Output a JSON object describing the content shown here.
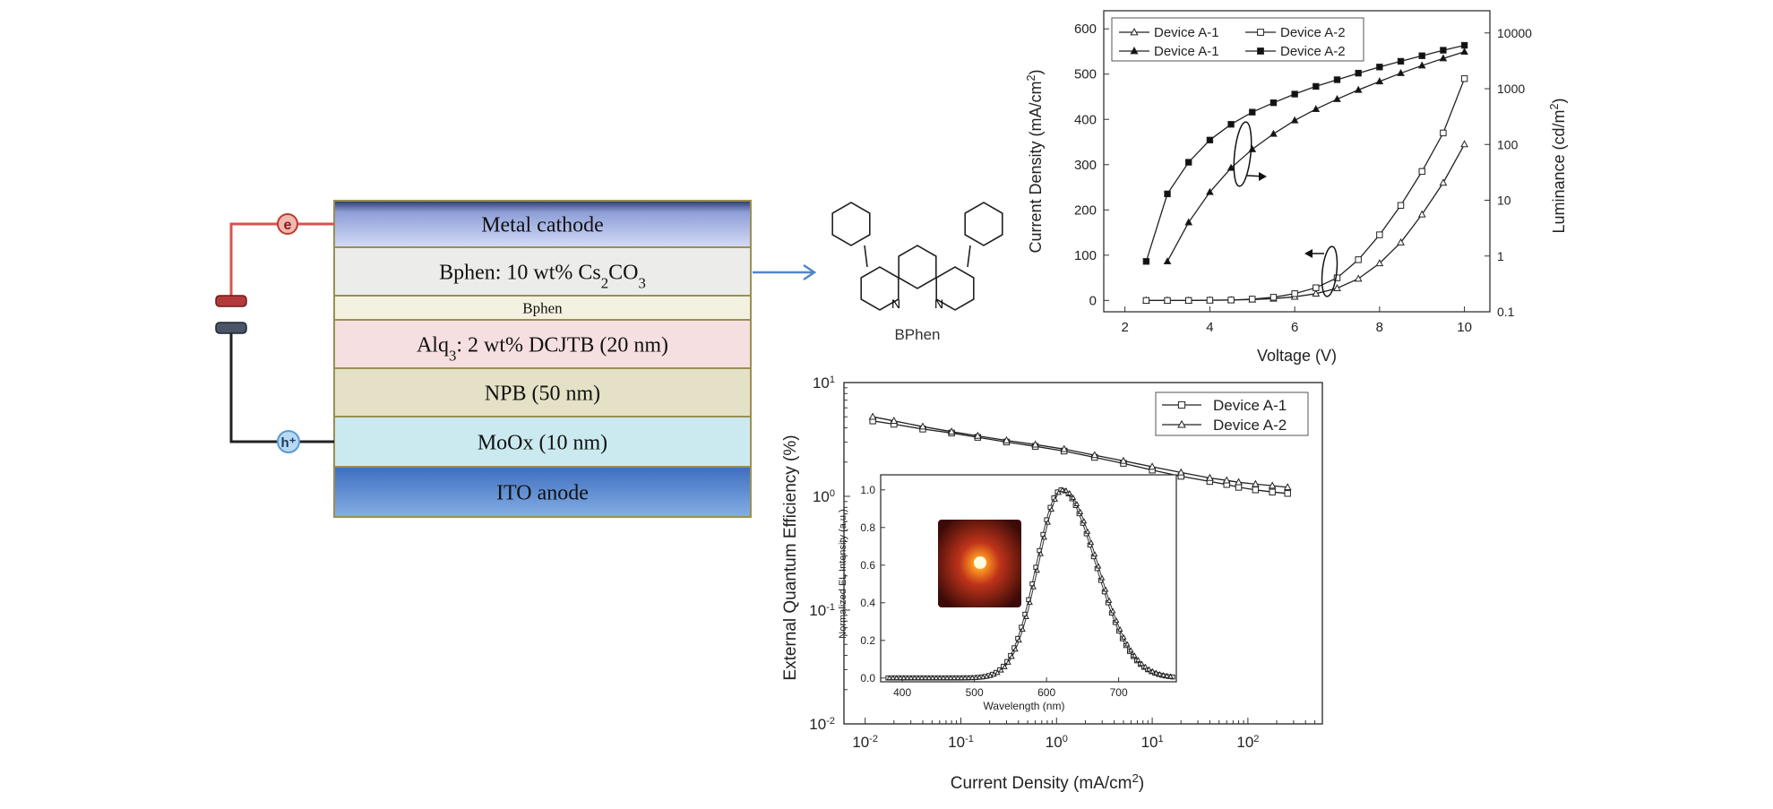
{
  "device_stack": {
    "layers": [
      {
        "label_parts": [
          {
            "t": "Metal cathode"
          }
        ],
        "color": "#b8c4ec"
      },
      {
        "label_parts": [
          {
            "t": "Bphen: 10 wt% Cs"
          },
          {
            "t": "2",
            "sub": true
          },
          {
            "t": "CO"
          },
          {
            "t": "3",
            "sub": true
          }
        ],
        "color": "#ececea"
      },
      {
        "label_parts": [
          {
            "t": "Bphen"
          }
        ],
        "color": "#f3f2e0"
      },
      {
        "label_parts": [
          {
            "t": "Alq"
          },
          {
            "t": "3",
            "sub": true
          },
          {
            "t": ": 2 wt% DCJTB (20 nm)"
          }
        ],
        "color": "#f6dfe0"
      },
      {
        "label_parts": [
          {
            "t": "NPB (50 nm)"
          }
        ],
        "color": "#e5e1c6"
      },
      {
        "label_parts": [
          {
            "t": "MoOx (10 nm)"
          }
        ],
        "color": "#cbeaf0"
      },
      {
        "label_parts": [
          {
            "t": "ITO anode"
          }
        ],
        "color": "#5f8fd2"
      }
    ],
    "electron_label": "e",
    "hole_label": "h⁺",
    "electron_wire_color": "#d9534f",
    "hole_wire_color": "#222222"
  },
  "molecule_label": "BPhen",
  "molecule_atom_label": "N",
  "chart_data": [
    {
      "type": "line",
      "id": "jvl",
      "xlabel": "Voltage (V)",
      "ylabel_parts": [
        {
          "t": "Current Density (mA/cm"
        },
        {
          "t": "2",
          "sup": true
        },
        {
          "t": ")"
        }
      ],
      "y2label_parts": [
        {
          "t": "Luminance (cd/m"
        },
        {
          "t": "2",
          "sup": true
        },
        {
          "t": ")"
        }
      ],
      "xlim": [
        1.5,
        10.6
      ],
      "ylim": [
        -25,
        640
      ],
      "y2lim": [
        0.1,
        25000
      ],
      "y2scale": "log",
      "xticks": [
        2,
        4,
        6,
        8,
        10
      ],
      "yticks": [
        0,
        100,
        200,
        300,
        400,
        500,
        600
      ],
      "y2ticks": [
        0.1,
        1,
        10,
        100,
        1000,
        10000
      ],
      "y2ticklabels": [
        "0.1",
        "1",
        "10",
        "100",
        "1000",
        "10000"
      ],
      "legend_position": "top-left",
      "legend": [
        {
          "name": "Device A-1",
          "marker": "triangle-open"
        },
        {
          "name": "Device A-2",
          "marker": "square-open"
        },
        {
          "name": "Device A-1",
          "marker": "triangle-filled"
        },
        {
          "name": "Device A-2",
          "marker": "square-filled"
        }
      ],
      "series": [
        {
          "name": "Device A-1",
          "marker": "triangle-open",
          "axis": "left",
          "x": [
            2.5,
            3.0,
            3.5,
            4.0,
            4.5,
            5.0,
            5.5,
            6.0,
            6.5,
            7.0,
            7.5,
            8.0,
            8.5,
            9.0,
            9.5,
            10.0
          ],
          "y": [
            0,
            0,
            0,
            0.5,
            1,
            2,
            4,
            8,
            15,
            27,
            48,
            82,
            128,
            190,
            260,
            345
          ]
        },
        {
          "name": "Device A-2",
          "marker": "square-open",
          "axis": "left",
          "x": [
            2.5,
            3.0,
            3.5,
            4.0,
            4.5,
            5.0,
            5.5,
            6.0,
            6.5,
            7.0,
            7.5,
            8.0,
            8.5,
            9.0,
            9.5,
            10.0
          ],
          "y": [
            0,
            0,
            0,
            0.5,
            1,
            3,
            7,
            15,
            28,
            50,
            90,
            145,
            210,
            285,
            370,
            490
          ]
        },
        {
          "name": "Device A-1",
          "marker": "triangle-filled",
          "axis": "right",
          "x": [
            3.0,
            3.5,
            4.0,
            4.5,
            5.0,
            5.5,
            6.0,
            6.5,
            7.0,
            7.5,
            8.0,
            8.5,
            9.0,
            9.5,
            10.0
          ],
          "y": [
            0.8,
            4,
            14,
            38,
            82,
            155,
            270,
            430,
            650,
            950,
            1350,
            1900,
            2600,
            3500,
            4600
          ]
        },
        {
          "name": "Device A-2",
          "marker": "square-filled",
          "axis": "right",
          "x": [
            2.5,
            3.0,
            3.5,
            4.0,
            4.5,
            5.0,
            5.5,
            6.0,
            6.5,
            7.0,
            7.5,
            8.0,
            8.5,
            9.0,
            9.5,
            10.0
          ],
          "y": [
            0.8,
            13,
            48,
            120,
            230,
            380,
            560,
            800,
            1100,
            1450,
            1900,
            2450,
            3100,
            3900,
            4900,
            6000
          ]
        }
      ]
    },
    {
      "type": "line",
      "id": "eqe",
      "xlabel_parts": [
        {
          "t": "Current Density (mA/cm"
        },
        {
          "t": "2",
          "sup": true
        },
        {
          "t": ")"
        }
      ],
      "ylabel": "External Quantum Efficiency (%)",
      "xscale": "log",
      "yscale": "log",
      "xlim": [
        0.006,
        600
      ],
      "ylim": [
        0.01,
        10
      ],
      "xticks": [
        0.01,
        0.1,
        1,
        10,
        100
      ],
      "yticks": [
        0.01,
        0.1,
        1,
        10
      ],
      "legend_position": "top-right",
      "legend": [
        {
          "name": "Device A-1",
          "marker": "square-open"
        },
        {
          "name": "Device A-2",
          "marker": "triangle-open"
        }
      ],
      "series": [
        {
          "name": "Device A-1",
          "marker": "square-open",
          "x": [
            0.012,
            0.02,
            0.04,
            0.08,
            0.15,
            0.3,
            0.6,
            1.2,
            2.5,
            5,
            10,
            20,
            40,
            60,
            80,
            120,
            180,
            260
          ],
          "y": [
            4.6,
            4.3,
            3.9,
            3.6,
            3.3,
            3.0,
            2.75,
            2.5,
            2.2,
            1.95,
            1.7,
            1.5,
            1.35,
            1.27,
            1.2,
            1.14,
            1.09,
            1.06
          ]
        },
        {
          "name": "Device A-2",
          "marker": "triangle-open",
          "x": [
            0.012,
            0.02,
            0.04,
            0.08,
            0.15,
            0.3,
            0.6,
            1.2,
            2.5,
            5,
            10,
            20,
            40,
            60,
            80,
            120,
            180,
            260
          ],
          "y": [
            5.0,
            4.6,
            4.1,
            3.7,
            3.4,
            3.1,
            2.85,
            2.6,
            2.3,
            2.05,
            1.82,
            1.62,
            1.45,
            1.38,
            1.33,
            1.28,
            1.24,
            1.2
          ]
        }
      ]
    },
    {
      "type": "line",
      "id": "el",
      "xlabel": "Wavelength (nm)",
      "ylabel": "Normalized EL Intensity (a.u.)",
      "xlim": [
        370,
        780
      ],
      "ylim": [
        -0.02,
        1.08
      ],
      "xticks": [
        400,
        500,
        600,
        700
      ],
      "yticks": [
        0.0,
        0.2,
        0.4,
        0.6,
        0.8,
        1.0
      ],
      "yticklabels": [
        "0.0",
        "0.2",
        "0.4",
        "0.6",
        "0.8",
        "1.0"
      ],
      "peak_nm": 620,
      "series": [
        {
          "marker": "square-open"
        },
        {
          "marker": "triangle-open"
        }
      ]
    }
  ]
}
